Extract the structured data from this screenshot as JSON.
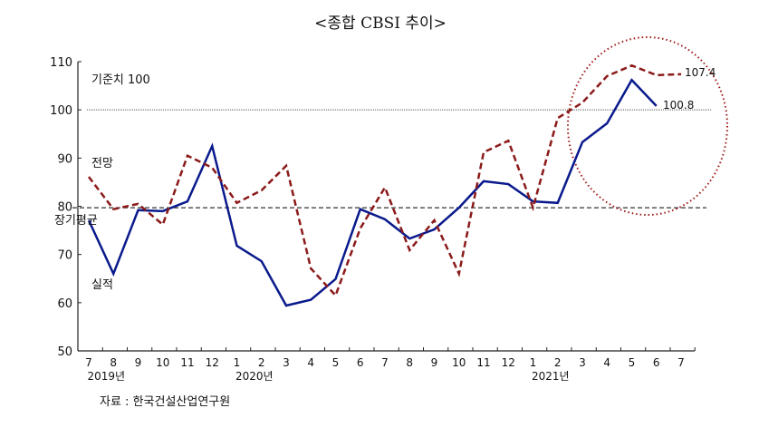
{
  "chart_data": {
    "type": "line",
    "title": "<종합 CBSI 추이>",
    "source": "자료 : 한국건설산업연구원",
    "categories": [
      "7",
      "8",
      "9",
      "10",
      "11",
      "12",
      "1",
      "2",
      "3",
      "4",
      "5",
      "6",
      "7",
      "8",
      "9",
      "10",
      "11",
      "12",
      "1",
      "2",
      "3",
      "4",
      "5",
      "6",
      "7"
    ],
    "year_labels": [
      {
        "label": "2019년",
        "at_index": 1
      },
      {
        "label": "2020년",
        "at_index": 7
      },
      {
        "label": "2021년",
        "at_index": 19
      }
    ],
    "ylim": [
      50,
      110
    ],
    "yticks": [
      50,
      60,
      70,
      80,
      90,
      100,
      110
    ],
    "series": [
      {
        "name": "실적",
        "color": "#0a1a8c",
        "style": "solid",
        "values": [
          77.1,
          66.0,
          79.2,
          79.0,
          81.0,
          92.5,
          71.8,
          68.6,
          59.4,
          60.6,
          64.9,
          79.4,
          77.3,
          73.3,
          75.2,
          79.7,
          85.2,
          84.6,
          81.0,
          80.7,
          93.3,
          97.2,
          106.2,
          100.8,
          null
        ],
        "end_label": "100.8"
      },
      {
        "name": "전망",
        "color": "#8b1a1a",
        "style": "dashed",
        "values": [
          86.1,
          79.4,
          80.5,
          76.2,
          90.5,
          88.0,
          80.7,
          83.3,
          88.4,
          67.1,
          61.5,
          75.4,
          83.9,
          70.9,
          77.1,
          66.0,
          91.2,
          93.6,
          79.7,
          98.3,
          101.5,
          107.0,
          109.2,
          107.2,
          107.4
        ],
        "end_label": "107.4"
      }
    ],
    "reference_lines": [
      {
        "label": "기준치 100",
        "value": 100,
        "style": "dotted"
      },
      {
        "label": "장기평균",
        "value": 79.7,
        "style": "dashed"
      }
    ],
    "highlight": {
      "shape": "dotted-circle",
      "color": "#a01818"
    },
    "grid": false
  }
}
